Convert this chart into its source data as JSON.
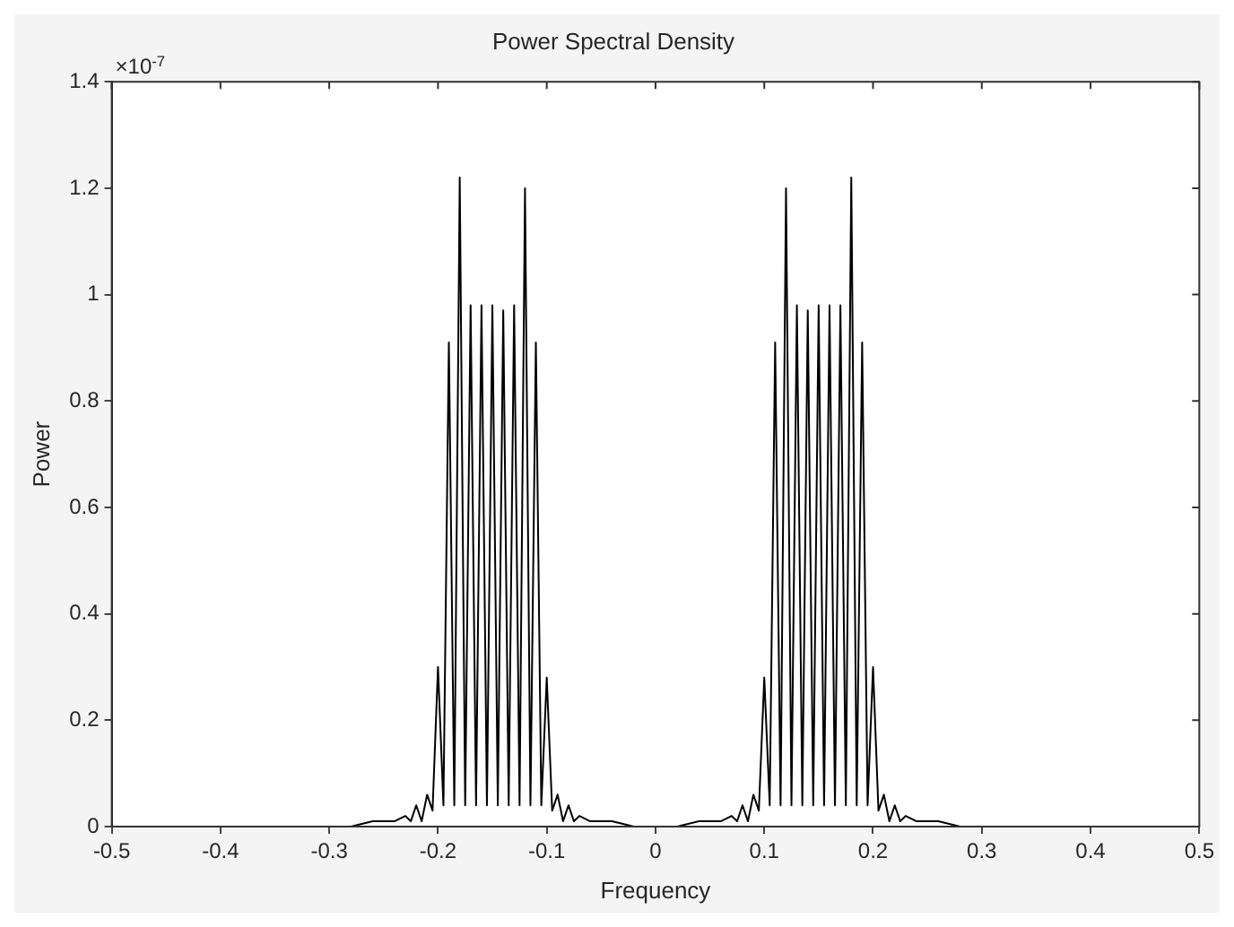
{
  "chart_data": {
    "type": "line",
    "title": "Power Spectral Density",
    "xlabel": "Frequency",
    "ylabel": "Power",
    "annotations": [
      "×10$^{-7}$"
    ],
    "x": [
      -0.5,
      -0.3,
      -0.28,
      -0.26,
      -0.24,
      -0.23,
      -0.225,
      -0.22,
      -0.215,
      -0.21,
      -0.205,
      -0.2,
      -0.195,
      -0.19,
      -0.185,
      -0.18,
      -0.175,
      -0.17,
      -0.165,
      -0.16,
      -0.155,
      -0.15,
      -0.145,
      -0.14,
      -0.135,
      -0.13,
      -0.125,
      -0.12,
      -0.115,
      -0.11,
      -0.105,
      -0.1,
      -0.095,
      -0.09,
      -0.085,
      -0.08,
      -0.075,
      -0.07,
      -0.06,
      -0.04,
      -0.02,
      0,
      0.02,
      0.04,
      0.06,
      0.07,
      0.075,
      0.08,
      0.085,
      0.09,
      0.095,
      0.1,
      0.105,
      0.11,
      0.115,
      0.12,
      0.125,
      0.13,
      0.135,
      0.14,
      0.145,
      0.15,
      0.155,
      0.16,
      0.165,
      0.17,
      0.175,
      0.18,
      0.185,
      0.19,
      0.195,
      0.2,
      0.205,
      0.21,
      0.215,
      0.22,
      0.225,
      0.23,
      0.24,
      0.26,
      0.28,
      0.3,
      0.5
    ],
    "series": [
      {
        "color": "#000000",
        "values": [
          0,
          0,
          0,
          0.01,
          0.01,
          0.02,
          0.01,
          0.04,
          0.01,
          0.06,
          0.03,
          0.3,
          0.04,
          0.91,
          0.04,
          1.22,
          0.04,
          0.98,
          0.04,
          0.98,
          0.04,
          0.98,
          0.04,
          0.97,
          0.04,
          0.98,
          0.04,
          1.2,
          0.04,
          0.91,
          0.04,
          0.28,
          0.03,
          0.06,
          0.01,
          0.04,
          0.01,
          0.02,
          0.01,
          0.01,
          0,
          0,
          0,
          0.01,
          0.01,
          0.02,
          0.01,
          0.04,
          0.01,
          0.06,
          0.03,
          0.28,
          0.04,
          0.91,
          0.04,
          1.2,
          0.04,
          0.98,
          0.04,
          0.97,
          0.04,
          0.98,
          0.04,
          0.98,
          0.04,
          0.98,
          0.04,
          1.22,
          0.04,
          0.91,
          0.04,
          0.3,
          0.03,
          0.06,
          0.01,
          0.04,
          0.01,
          0.02,
          0.01,
          0.01,
          0,
          0,
          0
        ]
      }
    ],
    "xlim": [
      -0.5,
      0.5
    ],
    "xticks": [
      -0.5,
      -0.4,
      -0.3,
      -0.2,
      -0.1,
      0,
      0.1,
      0.2,
      0.3,
      0.4,
      0.5
    ],
    "ylim": [
      0,
      1.4
    ],
    "yticks": [
      0,
      0.2,
      0.4,
      0.6,
      0.8,
      1,
      1.2,
      1.4
    ],
    "grid": false,
    "legend": false,
    "marker": "none",
    "line_style": "solid"
  }
}
